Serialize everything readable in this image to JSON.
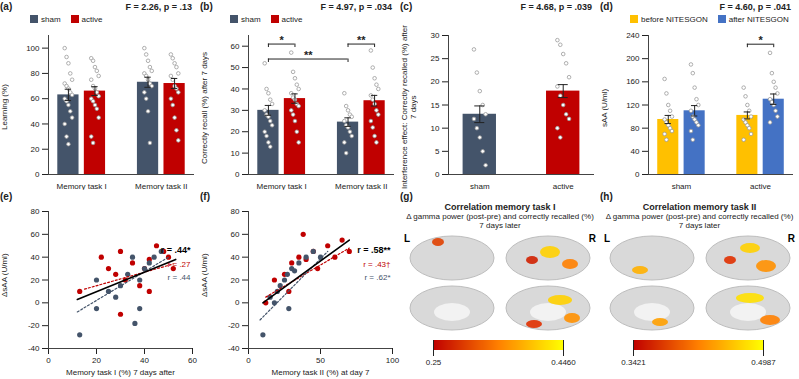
{
  "chart_data": [
    {
      "type": "bar",
      "title": "(a)",
      "annotation": "F = 2.26, p = .13",
      "y_label": "Learning (%)",
      "categories": [
        "Memory task I",
        "Memory task II"
      ],
      "marker": "circle",
      "legend": "top-left",
      "ylim": [
        0,
        110
      ],
      "yticks": [
        0,
        20,
        40,
        60,
        80,
        100
      ],
      "series": [
        {
          "name": "sham",
          "color": "#44546a",
          "values": [
            63,
            73
          ],
          "errors": [
            4.5,
            4
          ],
          "points": [
            [
              100,
              93,
              88,
              80,
              75,
              72,
              70,
              68,
              65,
              63,
              60,
              58,
              55,
              50,
              45,
              40,
              30,
              24
            ],
            [
              100,
              95,
              90,
              85,
              82,
              80,
              78,
              75,
              72,
              70,
              65,
              60,
              50,
              25
            ]
          ]
        },
        {
          "name": "active",
          "color": "#c00000",
          "values": [
            66,
            72
          ],
          "errors": [
            3.5,
            4
          ],
          "points": [
            [
              92,
              90,
              85,
              82,
              78,
              75,
              70,
              68,
              65,
              62,
              60,
              58,
              55,
              52,
              45,
              30,
              25
            ],
            [
              95,
              92,
              88,
              85,
              80,
              78,
              75,
              70,
              68,
              65,
              60,
              55,
              45,
              35,
              27
            ]
          ]
        }
      ]
    },
    {
      "type": "bar",
      "title": "(b)",
      "annotation": "F = 4.97, p = .034",
      "y_label": "Correctly recall (%) after 7 days",
      "categories": [
        "Memory task I",
        "Memory task II"
      ],
      "marker": "circle",
      "legend": "top-left",
      "ylim": [
        0,
        65
      ],
      "yticks": [
        0,
        10,
        20,
        30,
        40,
        50,
        60
      ],
      "series": [
        {
          "name": "sham",
          "color": "#44546a",
          "values": [
            30,
            24.5
          ],
          "errors": [
            2.3,
            2
          ],
          "points": [
            [
              52,
              40,
              38,
              35,
              33,
              30,
              28,
              27,
              25,
              23,
              20,
              18,
              15,
              13
            ],
            [
              38,
              32,
              30,
              28,
              27,
              25,
              23,
              22,
              20,
              18,
              15,
              10
            ]
          ]
        },
        {
          "name": "active",
          "color": "#c00000",
          "values": [
            35.5,
            34.5
          ],
          "errors": [
            2.2,
            2.5
          ],
          "points": [
            [
              57,
              48,
              45,
              42,
              40,
              38,
              36,
              35,
              33,
              32,
              30,
              28,
              25,
              20,
              15
            ],
            [
              58,
              50,
              45,
              42,
              40,
              37,
              35,
              33,
              30,
              28,
              25,
              22,
              18,
              15
            ]
          ]
        }
      ],
      "brackets": [
        {
          "label": "*",
          "y": 61,
          "from": [
            0,
            0
          ],
          "to": [
            0,
            1
          ]
        },
        {
          "label": "**",
          "y": 61,
          "from": [
            1,
            0
          ],
          "to": [
            1,
            1
          ]
        },
        {
          "label": "**",
          "y": 54,
          "from": [
            0,
            0
          ],
          "to": [
            1,
            0
          ]
        }
      ]
    },
    {
      "type": "bar",
      "title": "(c)",
      "annotation": "F = 4.68, p = .039",
      "y_label": "Interference effect: Correctly recalled (%) after 7 days",
      "categories": [
        "sham",
        "active"
      ],
      "marker": "circle",
      "colors": [
        "#44546a",
        "#c00000"
      ],
      "values": [
        13,
        18
      ],
      "errors": [
        1.8,
        1.4
      ],
      "points": [
        [
          27,
          22,
          18,
          15,
          13,
          12,
          10,
          8,
          5,
          2
        ],
        [
          29,
          28,
          26,
          24,
          21,
          19,
          17,
          15,
          13,
          12,
          10,
          8
        ]
      ],
      "ylim": [
        0,
        30
      ],
      "yticks": [
        0,
        5,
        10,
        15,
        20,
        25,
        30
      ]
    },
    {
      "type": "bar",
      "title": "(d)",
      "annotation": "F = 4.60, p = .041",
      "y_label": "sAA (U/ml)",
      "categories": [
        "sham",
        "active"
      ],
      "marker": "circle",
      "legend": "top-left",
      "ylim": [
        0,
        240
      ],
      "yticks": [
        0,
        40,
        80,
        120,
        160,
        200,
        240
      ],
      "series": [
        {
          "name": "before NITESGON",
          "color": "#ffc000",
          "values": [
            95,
            102
          ],
          "errors": [
            7,
            6
          ],
          "points": [
            [
              165,
              140,
              120,
              110,
              100,
              95,
              90,
              85,
              80,
              75,
              70,
              60
            ],
            [
              150,
              135,
              120,
              110,
              100,
              95,
              90,
              85,
              80,
              70,
              60
            ]
          ]
        },
        {
          "name": "after NITESGON",
          "color": "#4472c4",
          "values": [
            110,
            130
          ],
          "errors": [
            9,
            9
          ],
          "points": [
            [
              190,
              175,
              150,
              130,
              120,
              110,
              100,
              95,
              90,
              85,
              75,
              60
            ],
            [
              210,
              175,
              160,
              150,
              140,
              130,
              125,
              120,
              110,
              100,
              90
            ]
          ]
        }
      ],
      "brackets": [
        {
          "label": "*",
          "y": 225,
          "from": [
            1,
            0
          ],
          "to": [
            1,
            1
          ]
        }
      ]
    },
    {
      "type": "scatter",
      "title": "(e)",
      "x_label": "Memory task I (%) 7 days after",
      "y_label": "ΔsAA (U/ml)",
      "xlim": [
        0,
        60
      ],
      "xticks": [
        0,
        20,
        40,
        60
      ],
      "ylim": [
        -40,
        80
      ],
      "yticks": [
        -40,
        -20,
        0,
        20,
        40,
        60,
        80
      ],
      "overall": {
        "color": "#000000",
        "line_style": "solid",
        "r_label": "r = .44*",
        "fit": [
          [
            12,
            3
          ],
          [
            53,
            38
          ]
        ]
      },
      "series": [
        {
          "color": "#c00000",
          "marker": "circle",
          "line_style": "dotted",
          "r_label": "r = .27",
          "fit": [
            [
              15,
              12
            ],
            [
              52,
              34
            ]
          ],
          "points": [
            [
              13,
              10
            ],
            [
              22,
              40
            ],
            [
              25,
              30
            ],
            [
              28,
              25
            ],
            [
              30,
              45
            ],
            [
              32,
              20
            ],
            [
              35,
              35
            ],
            [
              38,
              15
            ],
            [
              40,
              30
            ],
            [
              42,
              38
            ],
            [
              45,
              50
            ],
            [
              48,
              45
            ],
            [
              50,
              40
            ],
            [
              52,
              30
            ],
            [
              30,
              -10
            ],
            [
              42,
              10
            ]
          ]
        },
        {
          "color": "#44546a",
          "marker": "circle",
          "line_style": "dotted",
          "r_label": "r = .44",
          "fit": [
            [
              12,
              -8
            ],
            [
              50,
              40
            ]
          ],
          "points": [
            [
              13,
              -28
            ],
            [
              20,
              -5
            ],
            [
              25,
              10
            ],
            [
              30,
              15
            ],
            [
              33,
              25
            ],
            [
              36,
              -18
            ],
            [
              38,
              20
            ],
            [
              40,
              30
            ],
            [
              42,
              35
            ],
            [
              44,
              40
            ],
            [
              47,
              45
            ],
            [
              20,
              20
            ],
            [
              28,
              5
            ],
            [
              35,
              40
            ],
            [
              38,
              -5
            ]
          ]
        }
      ]
    },
    {
      "type": "scatter",
      "title": "(f)",
      "x_label": "Memory task II (%) at day 7",
      "y_label": "ΔsAA (U/ml)",
      "xlim": [
        0,
        100
      ],
      "xticks": [
        0,
        50,
        100
      ],
      "ylim": [
        -40,
        80
      ],
      "yticks": [
        -40,
        -20,
        0,
        20,
        40,
        60,
        80
      ],
      "overall": {
        "color": "#000000",
        "line_style": "solid",
        "r_label": "r = .58**",
        "fit": [
          [
            10,
            0
          ],
          [
            70,
            55
          ]
        ]
      },
      "series": [
        {
          "color": "#c00000",
          "marker": "circle",
          "line_style": "dotted",
          "r_label": "r = .43†",
          "fit": [
            [
              12,
              5
            ],
            [
              70,
              48
            ]
          ],
          "points": [
            [
              12,
              0
            ],
            [
              18,
              20
            ],
            [
              25,
              25
            ],
            [
              28,
              10
            ],
            [
              30,
              35
            ],
            [
              35,
              40
            ],
            [
              40,
              38
            ],
            [
              45,
              45
            ],
            [
              48,
              30
            ],
            [
              55,
              50
            ],
            [
              60,
              40
            ],
            [
              65,
              55
            ],
            [
              38,
              60
            ],
            [
              70,
              45
            ]
          ]
        },
        {
          "color": "#44546a",
          "marker": "circle",
          "line_style": "dotted",
          "r_label": "r = .62*",
          "fit": [
            [
              8,
              -15
            ],
            [
              55,
              45
            ]
          ],
          "points": [
            [
              10,
              -28
            ],
            [
              15,
              5
            ],
            [
              18,
              0
            ],
            [
              20,
              10
            ],
            [
              22,
              15
            ],
            [
              25,
              20
            ],
            [
              27,
              25
            ],
            [
              30,
              30
            ],
            [
              32,
              28
            ],
            [
              35,
              35
            ],
            [
              40,
              40
            ],
            [
              45,
              45
            ],
            [
              28,
              -5
            ],
            [
              50,
              40
            ]
          ]
        }
      ]
    },
    {
      "type": "image",
      "title": "(g)",
      "heading": "Correlation memory task I",
      "subtitle": "Δ gamma power (post-pre) and correctly recalled (%) 7 days later",
      "hemisphere_labels": [
        "L",
        "R"
      ],
      "colorbar": {
        "range": [
          0.25,
          0.446
        ],
        "ticks": [
          0.25,
          {
            "value": 0.446,
            "label": "0.4460"
          }
        ]
      }
    },
    {
      "type": "image",
      "title": "(h)",
      "heading": "Correlation memory task II",
      "subtitle": "Δ gamma power (post-pre) and correctly recalled (%) 7 days later",
      "hemisphere_labels": [
        "L",
        "R"
      ],
      "colorbar": {
        "range": [
          0.3421,
          0.4987
        ],
        "ticks": [
          0.3421,
          0.4987
        ]
      }
    }
  ]
}
